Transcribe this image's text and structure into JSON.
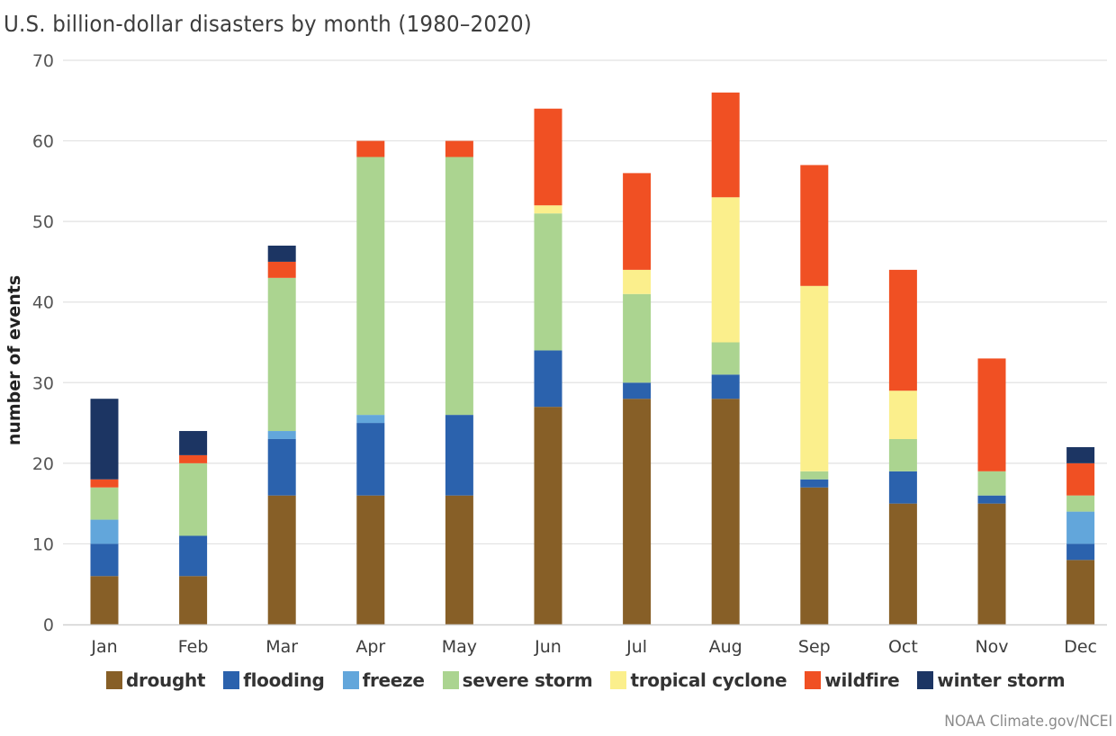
{
  "chart_data": {
    "type": "bar",
    "stacked": true,
    "title": "U.S. billion-dollar disasters by month (1980–2020)",
    "xlabel": "",
    "ylabel": "number of events",
    "ylim": [
      0,
      70
    ],
    "yticks": [
      0,
      10,
      20,
      30,
      40,
      50,
      60,
      70
    ],
    "grid": true,
    "legend_position": "bottom",
    "categories": [
      "Jan",
      "Feb",
      "Mar",
      "Apr",
      "May",
      "Jun",
      "Jul",
      "Aug",
      "Sep",
      "Oct",
      "Nov",
      "Dec"
    ],
    "series": [
      {
        "name": "drought",
        "color": "#875f27",
        "values": [
          6,
          6,
          16,
          16,
          16,
          27,
          28,
          28,
          17,
          15,
          15,
          8
        ]
      },
      {
        "name": "flooding",
        "color": "#2b62ad",
        "values": [
          4,
          5,
          7,
          9,
          10,
          7,
          2,
          3,
          1,
          4,
          1,
          2
        ]
      },
      {
        "name": "freeze",
        "color": "#62a6db",
        "values": [
          3,
          0,
          1,
          1,
          0,
          0,
          0,
          0,
          0,
          0,
          0,
          4
        ]
      },
      {
        "name": "severe storm",
        "color": "#abd490",
        "values": [
          4,
          9,
          19,
          32,
          32,
          17,
          11,
          4,
          1,
          4,
          3,
          2
        ]
      },
      {
        "name": "tropical cyclone",
        "color": "#fbef8c",
        "values": [
          0,
          0,
          0,
          0,
          0,
          1,
          3,
          18,
          23,
          6,
          0,
          0
        ]
      },
      {
        "name": "wildfire",
        "color": "#f05023",
        "values": [
          1,
          1,
          2,
          2,
          2,
          12,
          12,
          13,
          15,
          15,
          14,
          4
        ]
      },
      {
        "name": "winter storm",
        "color": "#1c3563",
        "values": [
          10,
          3,
          2,
          0,
          0,
          0,
          0,
          0,
          0,
          0,
          0,
          2
        ]
      }
    ],
    "totals": [
      28,
      24,
      47,
      60,
      60,
      64,
      56,
      66,
      57,
      44,
      33,
      22
    ]
  },
  "credit": "NOAA Climate.gov/NCEI"
}
